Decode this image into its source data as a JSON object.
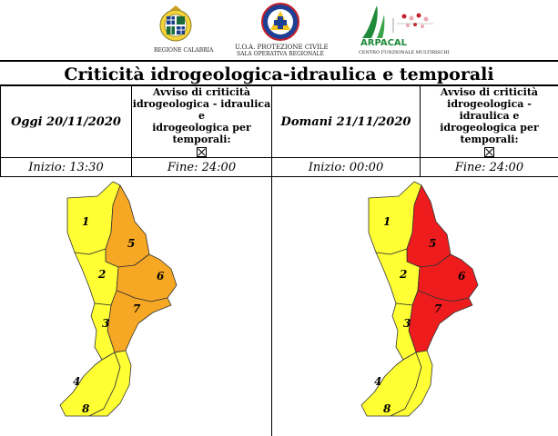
{
  "logos": {
    "region_caption": "REGIONE CALABRIA",
    "pc_line1": "U.O.A. PROTEZIONE CIVILE",
    "pc_line2": "SALA OPERATIVA REGIONALE",
    "arpacal_name": "ARPACAL",
    "arpacal_sub": "CENTRO FUNZIONALE MULTIRISCHI"
  },
  "title": "Criticità idrogeologica-idraulica e temporali",
  "today": {
    "day_label": "Oggi 20/11/2020",
    "avviso_1": "Avviso di criticità",
    "avviso_2": "idrogeologica - idraulica e",
    "avviso_3": "idrogeologica per temporali:",
    "start": "Inizio: 13:30",
    "end": "Fine: 24:00"
  },
  "tomorrow": {
    "day_label": "Domani 21/11/2020",
    "avviso_1": "Avviso di criticità",
    "avviso_2": "idrogeologica - idraulica e",
    "avviso_3": "idrogeologica per temporali:",
    "start": "Inizio: 00:00",
    "end": "Fine: 24:00"
  },
  "colors": {
    "yellow": "#FFFF33",
    "orange": "#F6A723",
    "red": "#EE1C1C"
  },
  "maps": {
    "today": {
      "zones": {
        "1": "yellow",
        "2": "yellow",
        "3": "yellow",
        "4": "yellow",
        "5": "orange",
        "6": "orange",
        "7": "orange",
        "8": "yellow"
      }
    },
    "tomorrow": {
      "zones": {
        "1": "yellow",
        "2": "yellow",
        "3": "yellow",
        "4": "yellow",
        "5": "red",
        "6": "red",
        "7": "red",
        "8": "yellow"
      }
    }
  },
  "zone_labels": {
    "1": "1",
    "2": "2",
    "3": "3",
    "4": "4",
    "5": "5",
    "6": "6",
    "7": "7",
    "8": "8"
  }
}
